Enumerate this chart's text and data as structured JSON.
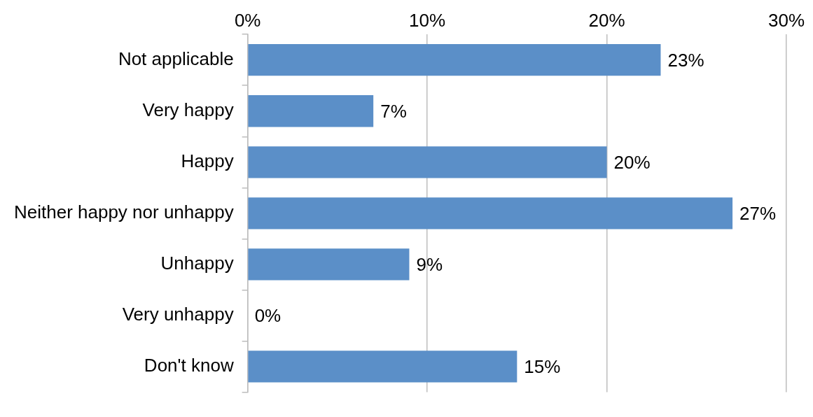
{
  "chart_data": {
    "type": "bar",
    "orientation": "horizontal",
    "categories": [
      "Not applicable",
      "Very happy",
      "Happy",
      "Neither happy nor unhappy",
      "Unhappy",
      "Very unhappy",
      "Don't know"
    ],
    "values": [
      23,
      7,
      20,
      27,
      9,
      0,
      15
    ],
    "value_labels": [
      "23%",
      "7%",
      "20%",
      "27%",
      "9%",
      "0%",
      "15%"
    ],
    "color": "#5b8fc8",
    "xlim": [
      0,
      30
    ],
    "xticks": [
      {
        "value": 0,
        "label": "0%"
      },
      {
        "value": 10,
        "label": "10%"
      },
      {
        "value": 20,
        "label": "20%"
      },
      {
        "value": 30,
        "label": "30%"
      }
    ],
    "grid": "x",
    "legend": false
  }
}
